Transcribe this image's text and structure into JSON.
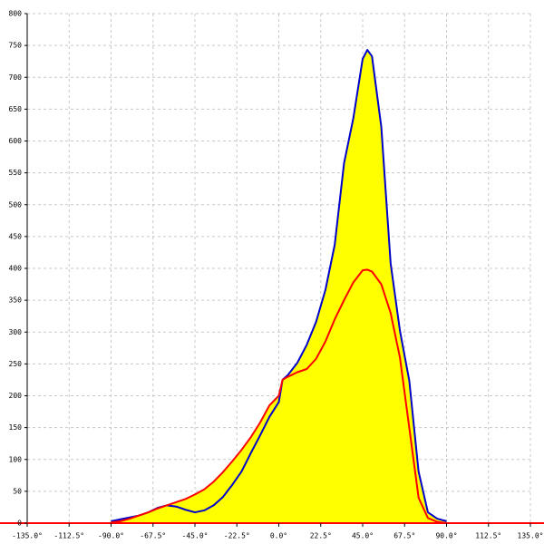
{
  "chart_data": {
    "type": "area",
    "x": [
      -90,
      -85,
      -80,
      -75,
      -70,
      -65,
      -60,
      -55,
      -50,
      -45,
      -40,
      -35,
      -30,
      -25,
      -20,
      -15,
      -10,
      -5,
      0,
      2,
      5,
      10,
      15,
      20,
      25,
      30,
      35,
      40,
      45,
      47.5,
      50,
      55,
      60,
      65,
      70,
      75,
      80,
      85,
      90
    ],
    "fill": "#ffff00",
    "series": [
      {
        "color": "#0000cc",
        "values": [
          3,
          6,
          9,
          12,
          17,
          24,
          28,
          26,
          21,
          17,
          20,
          28,
          41,
          60,
          81,
          110,
          138,
          167,
          190,
          225,
          233,
          252,
          280,
          316,
          366,
          437,
          565,
          636,
          729,
          743,
          733,
          622,
          408,
          302,
          224,
          81,
          17,
          7,
          3
        ]
      },
      {
        "color": "#ff0000",
        "values": [
          1,
          3,
          7,
          12,
          17,
          23,
          28,
          33,
          38,
          45,
          53,
          65,
          80,
          97,
          115,
          135,
          158,
          185,
          200,
          225,
          230,
          237,
          242,
          258,
          285,
          320,
          350,
          378,
          397,
          398,
          395,
          375,
          330,
          260,
          150,
          40,
          8,
          2,
          0
        ]
      }
    ],
    "xlim": [
      -135,
      135
    ],
    "xticks": [
      {
        "value": -135,
        "label": "-135.0°"
      },
      {
        "value": -112.5,
        "label": "-112.5°"
      },
      {
        "value": -90,
        "label": "-90.0°"
      },
      {
        "value": -67.5,
        "label": "-67.5°"
      },
      {
        "value": -45,
        "label": "-45.0°"
      },
      {
        "value": -22.5,
        "label": "-22.5°"
      },
      {
        "value": 0,
        "label": "0.0°"
      },
      {
        "value": 22.5,
        "label": "22.5°"
      },
      {
        "value": 45,
        "label": "45.0°"
      },
      {
        "value": 67.5,
        "label": "67.5°"
      },
      {
        "value": 90,
        "label": "90.0°"
      },
      {
        "value": 112.5,
        "label": "112.5°"
      },
      {
        "value": 135,
        "label": "135.0°"
      }
    ],
    "ylim": [
      0,
      800
    ],
    "yticks": [
      0,
      50,
      100,
      150,
      200,
      250,
      300,
      350,
      400,
      450,
      500,
      550,
      600,
      650,
      700,
      750,
      800
    ],
    "grid": true
  }
}
